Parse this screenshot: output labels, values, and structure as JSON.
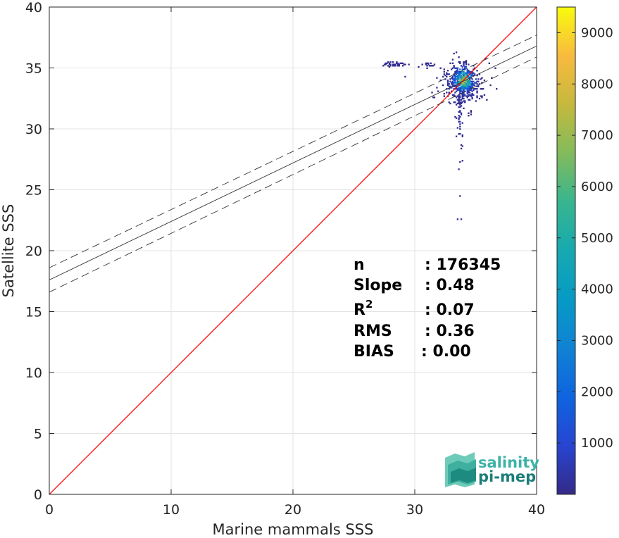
{
  "chart_data": {
    "type": "heatmap",
    "subtype": "2D density scatter with regression",
    "xlabel": "Marine mammals SSS",
    "ylabel": "Satellite SSS",
    "xlim": [
      0,
      40
    ],
    "ylim": [
      0,
      40
    ],
    "xticks": [
      0,
      10,
      20,
      30,
      40
    ],
    "yticks": [
      0,
      5,
      10,
      15,
      20,
      25,
      30,
      35,
      40
    ],
    "grid": true,
    "colorbar": {
      "colormap": "parula",
      "range": [
        0,
        9500
      ],
      "ticks": [
        1000,
        2000,
        3000,
        4000,
        5000,
        6000,
        7000,
        8000,
        9000
      ]
    },
    "lines": [
      {
        "kind": "identity",
        "x": [
          0,
          40
        ],
        "y": [
          0,
          40
        ],
        "color": "#ff0000",
        "style": "solid"
      },
      {
        "kind": "regression",
        "x": [
          0,
          40
        ],
        "y": [
          17.6,
          36.8
        ],
        "color": "#333333",
        "style": "solid"
      },
      {
        "kind": "upper-bound",
        "x": [
          0,
          40
        ],
        "y": [
          18.6,
          37.7
        ],
        "color": "#333333",
        "style": "dashed"
      },
      {
        "kind": "lower-bound",
        "x": [
          0,
          40
        ],
        "y": [
          16.6,
          35.9
        ],
        "color": "#333333",
        "style": "dashed"
      }
    ],
    "density_clusters": [
      {
        "x": 34.0,
        "y": 34.0,
        "sx": 0.45,
        "sy": 0.55,
        "peak": 9000,
        "n": 420
      },
      {
        "x": 33.8,
        "y": 33.6,
        "sx": 0.9,
        "sy": 0.9,
        "peak": 900,
        "n": 260
      },
      {
        "x": 28.5,
        "y": 35.3,
        "sx": 0.55,
        "sy": 0.1,
        "peak": 300,
        "n": 40
      },
      {
        "x": 31.0,
        "y": 35.3,
        "sx": 0.3,
        "sy": 0.12,
        "peak": 300,
        "n": 20
      },
      {
        "x": 33.7,
        "y": 31.5,
        "sx": 0.15,
        "sy": 1.6,
        "peak": 400,
        "n": 60
      }
    ],
    "outliers": [
      {
        "x": 33.6,
        "y": 26.7
      },
      {
        "x": 33.7,
        "y": 24.5
      },
      {
        "x": 33.5,
        "y": 22.6
      },
      {
        "x": 33.8,
        "y": 22.6
      },
      {
        "x": 29.2,
        "y": 34.3
      },
      {
        "x": 35.8,
        "y": 35.8
      }
    ],
    "stats": [
      {
        "label": "n",
        "value": ": 176345"
      },
      {
        "label": "Slope",
        "value": ": 0.48"
      },
      {
        "label": "R",
        "sup": "2",
        "value": ": 0.07"
      },
      {
        "label": "RMS",
        "value": ": 0.36"
      },
      {
        "label": "BIAS",
        "value": ": 0.00"
      }
    ]
  },
  "logo": {
    "line1": "salinity",
    "line2": "pi-mep"
  }
}
